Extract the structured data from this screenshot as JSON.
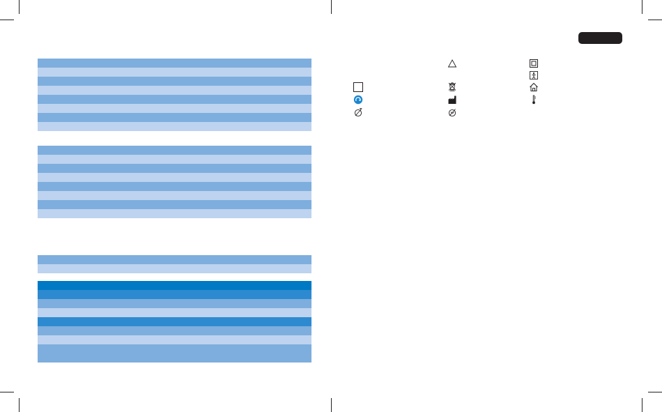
{
  "page": {
    "background": "#ffffff",
    "crop_mark_color": "#231f20"
  },
  "language_tab": {
    "label": "",
    "color": "#231f20"
  },
  "tables": {
    "colors": {
      "dark_row": "#7eaedd",
      "light_row": "#bdd3ef",
      "header_blue": "#0079c4",
      "mid_blue": "#2d8ad0"
    },
    "table_1": {
      "row_count": 8
    },
    "table_2": {
      "row_count": 8
    },
    "table_3": {
      "row_count": 2
    },
    "table_4": {
      "row_count": 8
    }
  },
  "symbols": [
    {
      "name": "warning-triangle-icon"
    },
    {
      "name": "double-insulation-icon"
    },
    {
      "name": "body-floating-type-bf-icon"
    },
    {
      "name": "empty-box-icon"
    },
    {
      "name": "weee-bin-icon"
    },
    {
      "name": "indoor-use-house-icon"
    },
    {
      "name": "recycling-icon"
    },
    {
      "name": "manufacturer-factory-icon"
    },
    {
      "name": "temperature-limit-icon"
    },
    {
      "name": "no-needle-icon"
    },
    {
      "name": "no-bent-hose-icon"
    }
  ]
}
